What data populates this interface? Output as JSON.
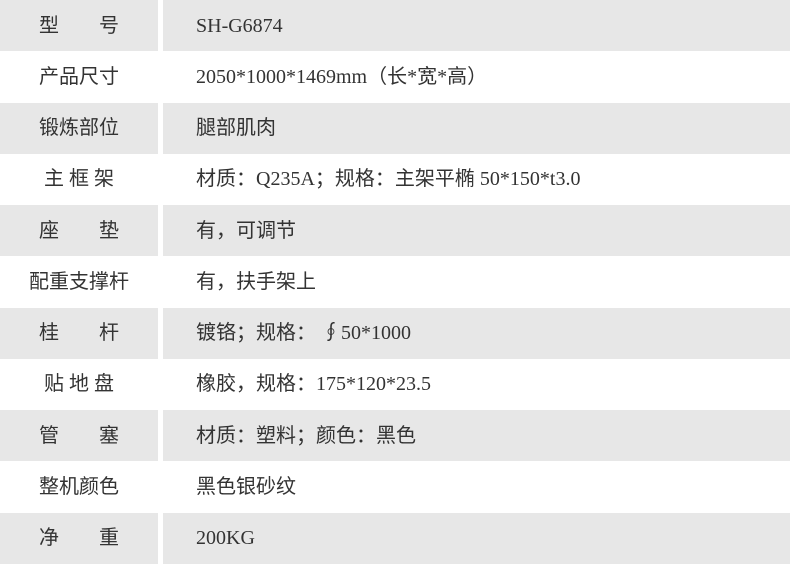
{
  "colors": {
    "row_shaded_background": "#e7e7e7",
    "row_plain_background": "#ffffff",
    "text": "#333333",
    "page_background": "#ffffff"
  },
  "table": {
    "rows": [
      {
        "label": "型　　号",
        "value": "SH-G6874"
      },
      {
        "label": "产品尺寸",
        "value": "2050*1000*1469mm（长*宽*高）"
      },
      {
        "label": "锻炼部位",
        "value": "腿部肌肉"
      },
      {
        "label": "主 框 架",
        "value": "材质：Q235A；规格：主架平椭 50*150*t3.0"
      },
      {
        "label": "座　　垫",
        "value": "有，可调节"
      },
      {
        "label": "配重支撑杆",
        "value": "有，扶手架上"
      },
      {
        "label": "桂　　杆",
        "value": "镀铬；规格： ∮50*1000"
      },
      {
        "label": "贴 地 盘",
        "value": "橡胶，规格：175*120*23.5"
      },
      {
        "label": "管　　塞",
        "value": "材质：塑料；颜色：黑色"
      },
      {
        "label": "整机颜色",
        "value": "黑色银砂纹"
      },
      {
        "label": "净　　重",
        "value": "200KG"
      }
    ]
  }
}
